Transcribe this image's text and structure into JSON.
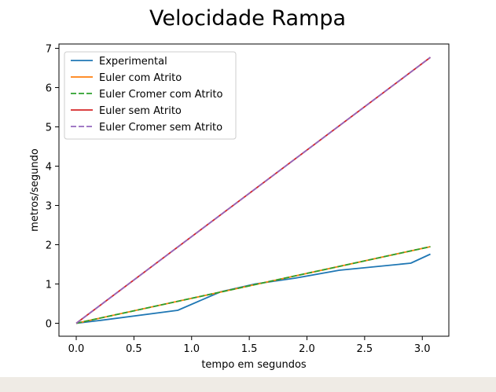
{
  "chart_data": {
    "type": "line",
    "title": "Velocidade Rampa",
    "xlabel": "tempo em segundos",
    "ylabel": "metros/segundo",
    "xlim": [
      -0.15,
      3.23
    ],
    "ylim": [
      -0.33,
      7.11
    ],
    "xticks": [
      0.0,
      0.5,
      1.0,
      1.5,
      2.0,
      2.5,
      3.0
    ],
    "xtick_labels": [
      "0.0",
      "0.5",
      "1.0",
      "1.5",
      "2.0",
      "2.5",
      "3.0"
    ],
    "yticks": [
      0,
      1,
      2,
      3,
      4,
      5,
      6,
      7
    ],
    "ytick_labels": [
      "0",
      "1",
      "2",
      "3",
      "4",
      "5",
      "6",
      "7"
    ],
    "grid": false,
    "legend_position": "top-left",
    "series": [
      {
        "name": "Experimental",
        "color": "#1f77b4",
        "dash": "solid",
        "x": [
          0.0,
          0.2,
          0.88,
          1.25,
          1.55,
          1.9,
          2.28,
          2.9,
          3.07
        ],
        "y": [
          0.0,
          0.07,
          0.33,
          0.8,
          1.0,
          1.15,
          1.35,
          1.53,
          1.76
        ]
      },
      {
        "name": "Euler com Atrito",
        "color": "#ff7f0e",
        "dash": "solid",
        "x": [
          0.0,
          3.07
        ],
        "y": [
          0.0,
          1.95
        ]
      },
      {
        "name": "Euler Cromer com Atrito",
        "color": "#2ca02c",
        "dash": "dashed",
        "x": [
          0.0,
          3.07
        ],
        "y": [
          0.0,
          1.95
        ]
      },
      {
        "name": "Euler sem Atrito",
        "color": "#d62728",
        "dash": "solid",
        "x": [
          0.0,
          3.07
        ],
        "y": [
          0.0,
          6.77
        ]
      },
      {
        "name": "Euler Cromer sem Atrito",
        "color": "#9467bd",
        "dash": "dashed",
        "x": [
          0.0,
          3.07
        ],
        "y": [
          0.0,
          6.77
        ]
      }
    ]
  }
}
